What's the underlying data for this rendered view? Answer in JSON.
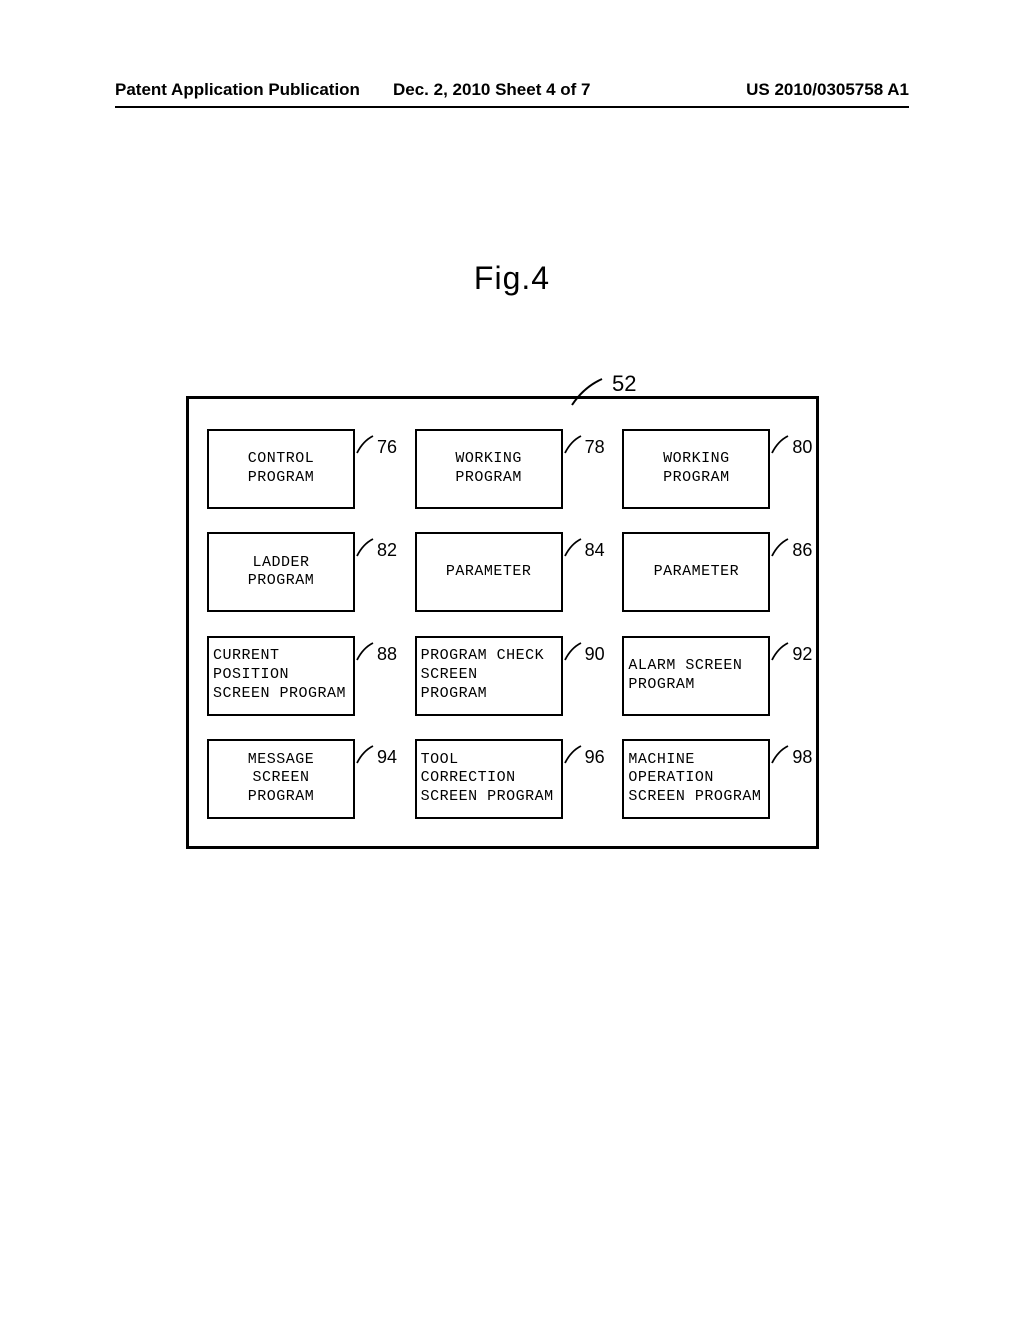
{
  "header": {
    "left": "Patent Application Publication",
    "center": "Dec. 2, 2010  Sheet 4 of 7",
    "right": "US 2010/0305758 A1"
  },
  "figure_title": "Fig.4",
  "container_ref": "52",
  "boxes": [
    {
      "text": "CONTROL\nPROGRAM",
      "ref": "76",
      "align": "center"
    },
    {
      "text": "WORKING\nPROGRAM",
      "ref": "78",
      "align": "center"
    },
    {
      "text": "WORKING\nPROGRAM",
      "ref": "80",
      "align": "center"
    },
    {
      "text": "LADDER\nPROGRAM",
      "ref": "82",
      "align": "center"
    },
    {
      "text": "PARAMETER",
      "ref": "84",
      "align": "center"
    },
    {
      "text": "PARAMETER",
      "ref": "86",
      "align": "center"
    },
    {
      "text": "CURRENT\nPOSITION\nSCREEN PROGRAM",
      "ref": "88",
      "align": "left"
    },
    {
      "text": "PROGRAM CHECK\nSCREEN\nPROGRAM",
      "ref": "90",
      "align": "left"
    },
    {
      "text": "ALARM SCREEN\nPROGRAM",
      "ref": "92",
      "align": "left"
    },
    {
      "text": "MESSAGE\nSCREEN\nPROGRAM",
      "ref": "94",
      "align": "center"
    },
    {
      "text": "TOOL\nCORRECTION\nSCREEN PROGRAM",
      "ref": "96",
      "align": "left"
    },
    {
      "text": "MACHINE\nOPERATION\nSCREEN PROGRAM",
      "ref": "98",
      "align": "left"
    }
  ]
}
